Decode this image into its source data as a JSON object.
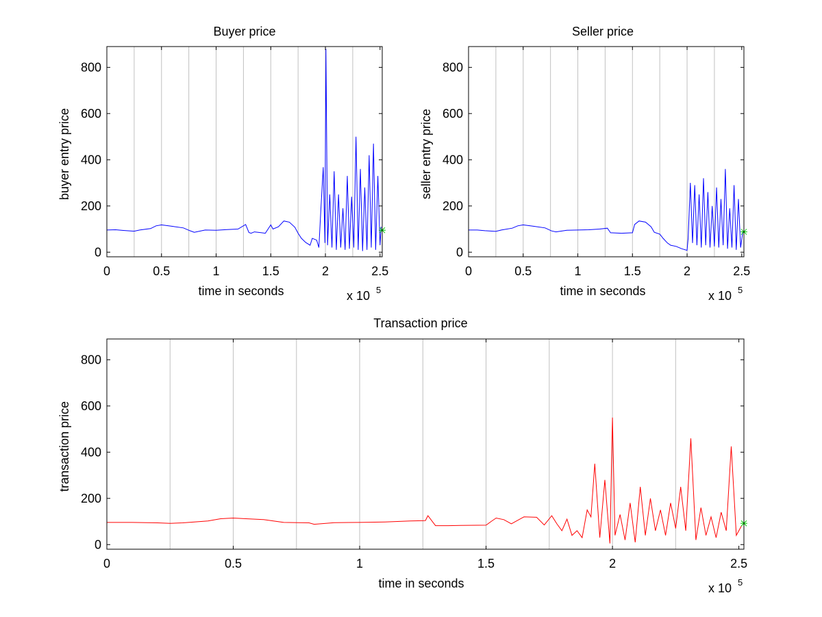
{
  "colors": {
    "buyer": "#0000ff",
    "seller": "#0000ff",
    "transaction": "#ff0000",
    "marker": "#00cc00",
    "grid": "#c0c0c0"
  },
  "chart_data": [
    {
      "type": "line",
      "title": "Buyer price",
      "xlabel": "time in seconds",
      "ylabel": "buyer entry price",
      "x_multiplier": "x 10",
      "x_multiplier_exp": "5",
      "xlim": [
        0,
        252000
      ],
      "ylim": [
        -20,
        890
      ],
      "xticks": [
        0,
        50000,
        100000,
        150000,
        200000,
        250000
      ],
      "xtick_labels": [
        "0",
        "0.5",
        "1",
        "1.5",
        "2",
        "2.5"
      ],
      "yticks": [
        0,
        200,
        400,
        600,
        800
      ],
      "ytick_labels": [
        "0",
        "200",
        "400",
        "600",
        "800"
      ],
      "vertical_gridlines_x": [
        25000,
        50000,
        75000,
        100000,
        125000,
        150000,
        175000,
        200000,
        225000
      ],
      "series": [
        {
          "x": [
            0,
            8000,
            15000,
            25000,
            30000,
            40000,
            45000,
            50000,
            60000,
            70000,
            76000,
            80000,
            90000,
            100000,
            110000,
            120000,
            127000,
            130000,
            132000,
            135000,
            145000,
            150000,
            152000,
            157000,
            162000,
            167000,
            172000,
            175000,
            178000,
            182000,
            186000,
            188000,
            192000,
            194000,
            196000,
            198000,
            199500,
            200500,
            202000,
            204000,
            206000,
            208000,
            210000,
            212000,
            214000,
            216000,
            218000,
            220000,
            222000,
            224000,
            226000,
            228000,
            230000,
            232000,
            234000,
            236000,
            238000,
            240000,
            242000,
            244000,
            246000,
            248000,
            250000,
            251000
          ],
          "values": [
            96,
            97,
            94,
            91,
            96,
            102,
            114,
            118,
            112,
            105,
            93,
            86,
            96,
            95,
            98,
            100,
            120,
            85,
            82,
            88,
            82,
            118,
            100,
            110,
            135,
            130,
            108,
            82,
            60,
            42,
            30,
            60,
            52,
            20,
            200,
            368,
            40,
            880,
            30,
            250,
            20,
            350,
            10,
            250,
            20,
            190,
            10,
            330,
            15,
            240,
            20,
            500,
            10,
            360,
            5,
            280,
            10,
            420,
            20,
            470,
            10,
            330,
            30,
            110
          ]
        }
      ],
      "marker": {
        "x": 252000,
        "y": 95
      }
    },
    {
      "type": "line",
      "title": "Seller price",
      "xlabel": "time in seconds",
      "ylabel": "seller entry price",
      "x_multiplier": "x 10",
      "x_multiplier_exp": "5",
      "xlim": [
        0,
        252000
      ],
      "ylim": [
        -20,
        890
      ],
      "xticks": [
        0,
        50000,
        100000,
        150000,
        200000,
        250000
      ],
      "xtick_labels": [
        "0",
        "0.5",
        "1",
        "1.5",
        "2",
        "2.5"
      ],
      "yticks": [
        0,
        200,
        400,
        600,
        800
      ],
      "ytick_labels": [
        "0",
        "200",
        "400",
        "600",
        "800"
      ],
      "vertical_gridlines_x": [
        25000,
        50000,
        75000,
        100000,
        125000,
        150000,
        175000,
        200000,
        225000
      ],
      "series": [
        {
          "x": [
            0,
            8000,
            15000,
            25000,
            30000,
            40000,
            45000,
            50000,
            60000,
            70000,
            76000,
            80000,
            90000,
            100000,
            110000,
            120000,
            127000,
            130000,
            140000,
            150000,
            152000,
            156000,
            162000,
            167000,
            170000,
            175000,
            178000,
            182000,
            185000,
            190000,
            195000,
            200000,
            201000,
            203000,
            205000,
            207000,
            209000,
            211000,
            213000,
            215000,
            217000,
            219000,
            221000,
            223000,
            225000,
            227000,
            229000,
            231000,
            233000,
            235000,
            237000,
            239000,
            241000,
            243000,
            245000,
            247000,
            249000,
            251000
          ],
          "values": [
            96,
            96,
            93,
            90,
            96,
            104,
            114,
            118,
            112,
            105,
            92,
            88,
            95,
            96,
            97,
            100,
            104,
            84,
            82,
            84,
            120,
            135,
            130,
            110,
            86,
            78,
            60,
            40,
            30,
            25,
            15,
            8,
            60,
            300,
            40,
            290,
            30,
            250,
            20,
            320,
            30,
            260,
            20,
            200,
            25,
            280,
            20,
            230,
            30,
            360,
            15,
            190,
            20,
            290,
            10,
            230,
            20,
            90
          ]
        }
      ],
      "marker": {
        "x": 252000,
        "y": 88
      }
    },
    {
      "type": "line",
      "title": "Transaction price",
      "xlabel": "time in seconds",
      "ylabel": "transaction price",
      "x_multiplier": "x 10",
      "x_multiplier_exp": "5",
      "xlim": [
        0,
        252000
      ],
      "ylim": [
        -20,
        890
      ],
      "xticks": [
        0,
        50000,
        100000,
        150000,
        200000,
        250000
      ],
      "xtick_labels": [
        "0",
        "0.5",
        "1",
        "1.5",
        "2",
        "2.5"
      ],
      "yticks": [
        0,
        200,
        400,
        600,
        800
      ],
      "ytick_labels": [
        "0",
        "200",
        "400",
        "600",
        "800"
      ],
      "vertical_gridlines_x": [
        25000,
        50000,
        75000,
        100000,
        125000,
        150000,
        175000,
        200000,
        225000
      ],
      "series": [
        {
          "x": [
            0,
            10000,
            20000,
            25000,
            30000,
            40000,
            45000,
            50000,
            55000,
            62000,
            70000,
            80000,
            82000,
            90000,
            100000,
            110000,
            120000,
            126000,
            127000,
            130000,
            135000,
            140000,
            150000,
            152000,
            154000,
            157000,
            160000,
            165000,
            170000,
            173000,
            176000,
            178000,
            180000,
            182000,
            184000,
            186000,
            188000,
            190000,
            191500,
            193000,
            195000,
            197000,
            199000,
            200000,
            201000,
            203000,
            205000,
            207000,
            209000,
            211000,
            213000,
            215000,
            217000,
            219000,
            221000,
            223000,
            225000,
            227000,
            229000,
            231000,
            233000,
            235000,
            237000,
            239000,
            241000,
            243000,
            245000,
            247000,
            249000,
            251000
          ],
          "values": [
            96,
            96,
            94,
            92,
            94,
            102,
            112,
            115,
            112,
            108,
            96,
            94,
            88,
            95,
            96,
            98,
            102,
            104,
            125,
            82,
            82,
            83,
            84,
            100,
            115,
            108,
            90,
            120,
            118,
            85,
            125,
            90,
            60,
            110,
            40,
            60,
            30,
            150,
            120,
            350,
            30,
            280,
            5,
            550,
            40,
            130,
            20,
            180,
            10,
            250,
            40,
            200,
            60,
            150,
            40,
            180,
            70,
            250,
            60,
            460,
            20,
            160,
            40,
            120,
            30,
            140,
            60,
            425,
            40,
            80
          ]
        }
      ],
      "marker": {
        "x": 252000,
        "y": 92
      }
    }
  ]
}
